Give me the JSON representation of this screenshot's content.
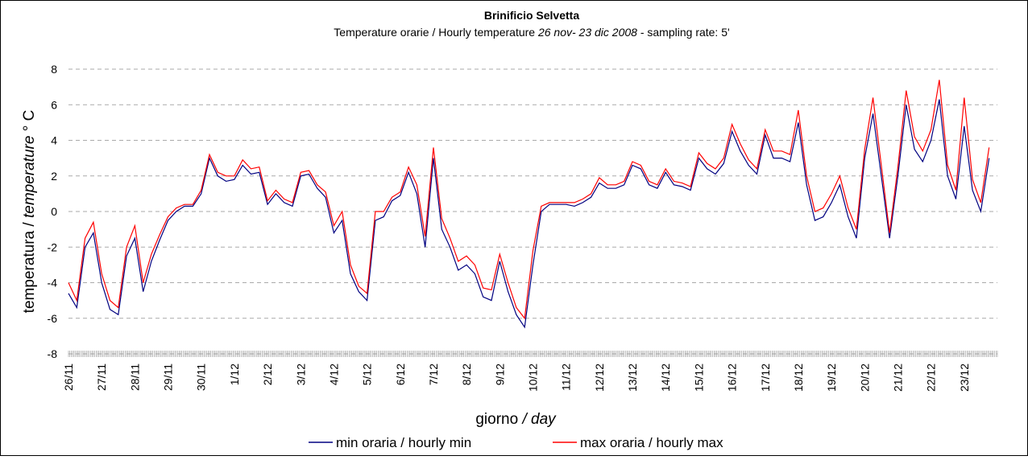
{
  "chart_data": {
    "type": "line",
    "title": "Brinificio Selvetta",
    "subtitle": [
      "Temperature orarie / Hourly temperature",
      "26 nov- 23 dic 2008",
      "- sampling rate: 5'"
    ],
    "ylabel": [
      "temperatura /",
      "temperature",
      "° C"
    ],
    "xlabel": [
      "giorno",
      "/ day"
    ],
    "categories": [
      "26/11",
      null,
      null,
      null,
      "27/11",
      null,
      null,
      null,
      "28/11",
      null,
      null,
      null,
      "29/11",
      null,
      null,
      null,
      "30/11",
      null,
      null,
      null,
      "1/12",
      null,
      null,
      null,
      "2/12",
      null,
      null,
      null,
      "3/12",
      null,
      null,
      null,
      "4/12",
      null,
      null,
      null,
      "5/12",
      null,
      null,
      null,
      "6/12",
      null,
      null,
      null,
      "7/12",
      null,
      null,
      null,
      "8/12",
      null,
      null,
      null,
      "9/12",
      null,
      null,
      null,
      "10/12",
      null,
      null,
      null,
      "11/12",
      null,
      null,
      null,
      "12/12",
      null,
      null,
      null,
      "13/12",
      null,
      null,
      null,
      "14/12",
      null,
      null,
      null,
      "15/12",
      null,
      null,
      null,
      "16/12",
      null,
      null,
      null,
      "17/12",
      null,
      null,
      null,
      "18/12",
      null,
      null,
      null,
      "19/12",
      null,
      null,
      null,
      "20/12",
      null,
      null,
      null,
      "21/12",
      null,
      null,
      null,
      "22/12",
      null,
      null,
      null,
      "23/12",
      null,
      null,
      null
    ],
    "series": [
      {
        "name": "min oraria / hourly min",
        "color": "#000080",
        "values": [
          -4.6,
          -5.4,
          -2.0,
          -1.2,
          -4.0,
          -5.5,
          -5.8,
          -2.5,
          -1.5,
          -4.5,
          -2.8,
          -1.6,
          -0.5,
          0,
          0.3,
          0.3,
          1.0,
          3.0,
          2.0,
          1.7,
          1.8,
          2.6,
          2.1,
          2.2,
          0.4,
          1.0,
          0.5,
          0.3,
          2.0,
          2.1,
          1.3,
          0.8,
          -1.2,
          -0.5,
          -3.5,
          -4.5,
          -5.0,
          -0.5,
          -0.3,
          0.6,
          0.9,
          2.2,
          1.0,
          -2.0,
          3.0,
          -1.0,
          -2.0,
          -3.3,
          -3.0,
          -3.5,
          -4.8,
          -5.0,
          -2.8,
          -4.5,
          -5.8,
          -6.5,
          -3.0,
          0.0,
          0.4,
          0.4,
          0.4,
          0.3,
          0.5,
          0.8,
          1.6,
          1.3,
          1.3,
          1.5,
          2.6,
          2.4,
          1.5,
          1.3,
          2.2,
          1.5,
          1.4,
          1.2,
          3.0,
          2.4,
          2.1,
          2.7,
          4.5,
          3.4,
          2.6,
          2.1,
          4.3,
          3.0,
          3.0,
          2.8,
          5.0,
          1.5,
          -0.5,
          -0.3,
          0.5,
          1.5,
          -0.3,
          -1.5,
          3.0,
          5.5,
          2.0,
          -1.5,
          2.0,
          6.0,
          3.5,
          2.8,
          4.0,
          6.3,
          2.0,
          0.7,
          4.8,
          1.2,
          0.0,
          3.0
        ]
      },
      {
        "name": "max oraria / hourly max",
        "color": "#ff0000",
        "values": [
          -4.0,
          -5.0,
          -1.5,
          -0.6,
          -3.5,
          -5.0,
          -5.4,
          -2.0,
          -0.8,
          -4.0,
          -2.4,
          -1.3,
          -0.3,
          0.2,
          0.4,
          0.4,
          1.2,
          3.2,
          2.2,
          2.0,
          2.0,
          2.9,
          2.4,
          2.5,
          0.6,
          1.2,
          0.7,
          0.5,
          2.2,
          2.3,
          1.5,
          1.1,
          -0.8,
          0.0,
          -3.0,
          -4.2,
          -4.6,
          0.0,
          0.0,
          0.8,
          1.1,
          2.5,
          1.5,
          -1.4,
          3.6,
          -0.4,
          -1.5,
          -2.8,
          -2.5,
          -3.0,
          -4.3,
          -4.4,
          -2.4,
          -4.0,
          -5.4,
          -6.0,
          -2.2,
          0.3,
          0.5,
          0.5,
          0.5,
          0.5,
          0.7,
          1.0,
          1.9,
          1.5,
          1.5,
          1.7,
          2.8,
          2.6,
          1.7,
          1.5,
          2.4,
          1.7,
          1.6,
          1.4,
          3.3,
          2.7,
          2.4,
          3.0,
          4.9,
          3.8,
          2.9,
          2.4,
          4.6,
          3.4,
          3.4,
          3.2,
          5.7,
          2.0,
          0.0,
          0.2,
          1.0,
          2.0,
          0.2,
          -1.0,
          3.5,
          6.4,
          2.6,
          -1.2,
          2.5,
          6.8,
          4.2,
          3.4,
          4.6,
          7.4,
          2.6,
          1.2,
          6.4,
          1.8,
          0.5,
          3.6
        ]
      }
    ],
    "ylim": [
      -8,
      8
    ],
    "yticks": [
      -8,
      -6,
      -4,
      -2,
      0,
      2,
      4,
      6,
      8
    ],
    "grid": true,
    "legend": "bottom"
  }
}
